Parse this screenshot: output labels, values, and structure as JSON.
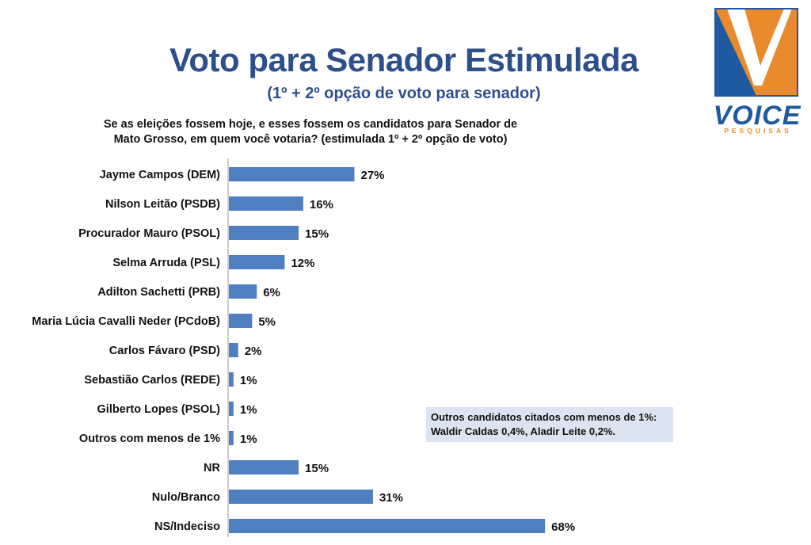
{
  "header": {
    "title": "Voto para Senador Estimulada",
    "subtitle": "(1º + 2º opção de voto para senador)",
    "question": "Se as eleições fossem hoje, e esses fossem os candidatos para Senador de Mato Grosso, em quem você votaria?  (estimulada 1º + 2º opção de voto)"
  },
  "logo": {
    "name": "VOICE",
    "sub": "PESQUISAS"
  },
  "note": "Outros candidatos citados com menos de 1%: Waldir Caldas 0,4%, Aladir Leite 0,2%.",
  "colors": {
    "bar": "#4f7fc0",
    "title": "#2d4f8a",
    "logo_blue": "#1f5aa0",
    "logo_orange": "#e98a2c"
  },
  "chart_data": {
    "type": "bar",
    "orientation": "horizontal",
    "categories": [
      "Jayme Campos (DEM)",
      "Nilson Leitão (PSDB)",
      "Procurador Mauro (PSOL)",
      "Selma Arruda (PSL)",
      "Adilton Sachetti (PRB)",
      "Maria Lúcia Cavalli Neder (PCdoB)",
      "Carlos Fávaro (PSD)",
      "Sebastião Carlos (REDE)",
      "Gilberto Lopes (PSOL)",
      "Outros com menos de 1%",
      "NR",
      "Nulo/Branco",
      "NS/Indeciso"
    ],
    "values": [
      27,
      16,
      15,
      12,
      6,
      5,
      2,
      1,
      1,
      1,
      15,
      31,
      68
    ],
    "value_labels": [
      "27%",
      "16%",
      "15%",
      "12%",
      "6%",
      "5%",
      "2%",
      "1%",
      "1%",
      "1%",
      "15%",
      "31%",
      "68%"
    ],
    "xlim": [
      0,
      100
    ],
    "grid": false,
    "legend": "none"
  }
}
